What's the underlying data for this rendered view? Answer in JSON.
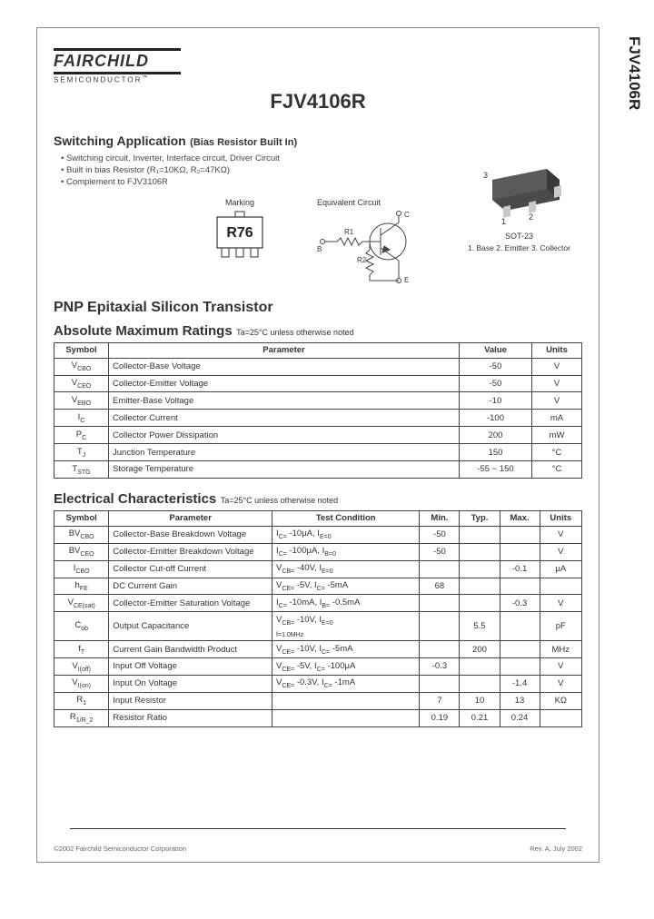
{
  "side_label": "FJV4106R",
  "logo": {
    "brand": "FAIRCHILD",
    "sub": "SEMICONDUCTOR",
    "tm": "™"
  },
  "page_title": "FJV4106R",
  "switching": {
    "title": "Switching Application",
    "subtitle": "(Bias Resistor Built In)",
    "bullets": [
      "Switching circuit, Inverter, Interface circuit, Driver Circuit",
      "Built in bias Resistor (R₁=10KΩ, R₂=47KΩ)",
      "Complement to FJV3106R"
    ]
  },
  "package": {
    "name": "SOT-23",
    "pins": "1. Base 2. Emitter 3. Collector",
    "pin3": "3",
    "pin1": "1",
    "pin2": "2",
    "body_color": "#4a4a4a",
    "lead_color": "#c9c9c9"
  },
  "marking": {
    "label": "Marking",
    "code": "R76"
  },
  "equivalent": {
    "label": "Equivalent Circuit",
    "r1": "R1",
    "r2": "R2",
    "b": "B",
    "c": "C",
    "e": "E",
    "line_color": "#444"
  },
  "subtype": "PNP Epitaxial Silicon Transistor",
  "ratings": {
    "heading": "Absolute Maximum Ratings",
    "cond": "Ta=25°C unless otherwise noted",
    "columns": [
      "Symbol",
      "Parameter",
      "Value",
      "Units"
    ],
    "col_widths": [
      "60px",
      "auto",
      "80px",
      "55px"
    ],
    "rows": [
      [
        "V_CBO",
        "Collector-Base Voltage",
        "-50",
        "V"
      ],
      [
        "V_CEO",
        "Collector-Emitter Voltage",
        "-50",
        "V"
      ],
      [
        "V_EBO",
        "Emitter-Base Voltage",
        "-10",
        "V"
      ],
      [
        "I_C",
        "Collector Current",
        "-100",
        "mA"
      ],
      [
        "P_C",
        "Collector Power Dissipation",
        "200",
        "mW"
      ],
      [
        "T_J",
        "Junction Temperature",
        "150",
        "°C"
      ],
      [
        "T_STG",
        "Storage Temperature",
        "-55 ~ 150",
        "°C"
      ]
    ]
  },
  "electrical": {
    "heading": "Electrical Characteristics",
    "cond": "Ta=25°C unless otherwise noted",
    "columns": [
      "Symbol",
      "Parameter",
      "Test Condition",
      "Min.",
      "Typ.",
      "Max.",
      "Units"
    ],
    "col_widths": [
      "52px",
      "155px",
      "140px",
      "38px",
      "38px",
      "38px",
      "40px"
    ],
    "rows": [
      [
        "BV_CBO",
        "Collector-Base Breakdown Voltage",
        "I_C= -10μA, I_E=0",
        "-50",
        "",
        "",
        "V"
      ],
      [
        "BV_CEO",
        "Collector-Emitter Breakdown Voltage",
        "I_C= -100μA, I_B=0",
        "-50",
        "",
        "",
        "V"
      ],
      [
        "I_CBO",
        "Collector Cut-off Current",
        "V_CB= -40V, I_E=0",
        "",
        "",
        "-0.1",
        "μA"
      ],
      [
        "h_FE",
        "DC Current Gain",
        "V_CE= -5V, I_C= -5mA",
        "68",
        "",
        "",
        ""
      ],
      [
        "V_CE(sat)",
        "Collector-Emitter Saturation Voltage",
        "I_C= -10mA, I_B= -0.5mA",
        "",
        "",
        "-0.3",
        "V"
      ],
      [
        "C_ob",
        "Output Capacitance",
        "V_CB= -10V, I_E=0\nf=1.0MHz",
        "",
        "5.5",
        "",
        "pF"
      ],
      [
        "f_T",
        "Current Gain Bandwidth Product",
        "V_CE= -10V, I_C= -5mA",
        "",
        "200",
        "",
        "MHz"
      ],
      [
        "V_I(off)",
        "Input Off Voltage",
        "V_CE= -5V, I_C= -100μA",
        "-0.3",
        "",
        "",
        "V"
      ],
      [
        "V_I(on)",
        "Input On Voltage",
        "V_CE= -0.3V, I_C= -1mA",
        "",
        "",
        "-1.4",
        "V"
      ],
      [
        "R_1",
        "Input Resistor",
        "",
        "7",
        "10",
        "13",
        "KΩ"
      ],
      [
        "R_1/R_2",
        "Resistor Ratio",
        "",
        "0.19",
        "0.21",
        "0.24",
        ""
      ]
    ]
  },
  "footer": {
    "left": "©2002 Fairchild Semiconductor Corporation",
    "right": "Rev. A, July 2002"
  }
}
